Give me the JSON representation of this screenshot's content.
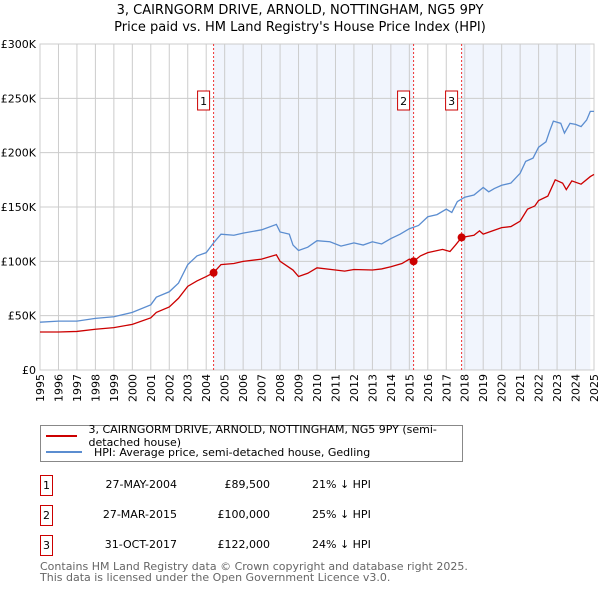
{
  "chart_data": {
    "type": "line",
    "title": "3, CAIRNGORM DRIVE, ARNOLD, NOTTINGHAM, NG5 9PY",
    "subtitle": "Price paid vs. HM Land Registry's House Price Index (HPI)",
    "xlim": [
      1995,
      2025
    ],
    "ylim": [
      0,
      300000
    ],
    "x_ticks": [
      "1995",
      "1996",
      "1997",
      "1998",
      "1999",
      "2000",
      "2001",
      "2002",
      "2003",
      "2004",
      "2005",
      "2006",
      "2007",
      "2008",
      "2009",
      "2010",
      "2011",
      "2012",
      "2013",
      "2014",
      "2015",
      "2016",
      "2017",
      "2018",
      "2019",
      "2020",
      "2021",
      "2022",
      "2023",
      "2024",
      "2025"
    ],
    "y_ticks": [
      {
        "v": 0,
        "label": "£0"
      },
      {
        "v": 50000,
        "label": "£50K"
      },
      {
        "v": 100000,
        "label": "£100K"
      },
      {
        "v": 150000,
        "label": "£150K"
      },
      {
        "v": 200000,
        "label": "£200K"
      },
      {
        "v": 250000,
        "label": "£250K"
      },
      {
        "v": 300000,
        "label": "£300K"
      }
    ],
    "grid": true,
    "series": [
      {
        "name": "3, CAIRNGORM DRIVE, ARNOLD, NOTTINGHAM, NG5 9PY (semi-detached house)",
        "color": "#cc0000",
        "x": [
          1995,
          1996,
          1997,
          1998,
          1999,
          2000,
          2001,
          2001.3,
          2002,
          2002.5,
          2003,
          2003.5,
          2004,
          2004.4,
          2004.8,
          2005.5,
          2006,
          2007,
          2007.8,
          2008,
          2008.7,
          2009,
          2009.5,
          2010,
          2011,
          2011.5,
          2012,
          2013,
          2013.5,
          2014,
          2014.6,
          2015,
          2015.23,
          2015.6,
          2016,
          2016.8,
          2017.2,
          2017.5,
          2017.83,
          2018.5,
          2018.8,
          2019,
          2019.5,
          2020,
          2020.5,
          2021,
          2021.4,
          2021.8,
          2022,
          2022.5,
          2022.9,
          2023.3,
          2023.5,
          2023.8,
          2024.3,
          2024.8,
          2025
        ],
        "y": [
          35000,
          35000,
          35500,
          37500,
          39000,
          42000,
          48000,
          53000,
          58000,
          66000,
          77000,
          82000,
          86000,
          89500,
          97000,
          98000,
          100000,
          102000,
          106000,
          100000,
          92000,
          86000,
          89000,
          94000,
          92000,
          91000,
          92500,
          92000,
          93000,
          95000,
          98000,
          102000,
          100000,
          105000,
          108000,
          111000,
          109000,
          115000,
          122000,
          124000,
          128000,
          125000,
          128000,
          131000,
          132000,
          137000,
          148000,
          151000,
          156000,
          160000,
          175000,
          172000,
          166000,
          174000,
          171000,
          178000,
          180000
        ]
      },
      {
        "name": "HPI: Average price, semi-detached house, Gedling",
        "color": "#5b8dd0",
        "x": [
          1995,
          1996,
          1997,
          1998,
          1999,
          2000,
          2001,
          2001.3,
          2002,
          2002.5,
          2003,
          2003.5,
          2004,
          2004.4,
          2004.8,
          2005.5,
          2006,
          2007,
          2007.8,
          2008,
          2008.5,
          2008.7,
          2009,
          2009.5,
          2010,
          2010.7,
          2011.3,
          2012,
          2012.5,
          2013,
          2013.5,
          2014,
          2014.5,
          2015,
          2015.5,
          2016,
          2016.5,
          2017,
          2017.3,
          2017.6,
          2018,
          2018.5,
          2019,
          2019.3,
          2019.6,
          2020,
          2020.5,
          2021,
          2021.3,
          2021.7,
          2022,
          2022.4,
          2022.6,
          2022.8,
          2023.2,
          2023.4,
          2023.7,
          2024,
          2024.3,
          2024.6,
          2024.8,
          2025
        ],
        "y": [
          44000,
          45000,
          45000,
          47500,
          49000,
          53000,
          60000,
          67000,
          72000,
          80000,
          97000,
          105000,
          108000,
          117000,
          125000,
          124000,
          126000,
          129000,
          134000,
          127000,
          125000,
          115000,
          110000,
          113000,
          119000,
          118000,
          114000,
          117000,
          115000,
          118000,
          116000,
          121000,
          125000,
          130000,
          133000,
          141000,
          143000,
          148000,
          145000,
          155000,
          159000,
          161000,
          168000,
          164000,
          167000,
          170000,
          172000,
          181000,
          192000,
          195000,
          205000,
          210000,
          220000,
          229000,
          227000,
          218000,
          227000,
          226000,
          224000,
          230000,
          238000,
          238000
        ]
      }
    ],
    "sales": [
      {
        "id": "1",
        "x": 2004.4,
        "y": 89500,
        "date": "27-MAY-2004",
        "price": "£89,500",
        "hpi": "21% ↓ HPI"
      },
      {
        "id": "2",
        "x": 2015.23,
        "y": 100000,
        "date": "27-MAR-2015",
        "price": "£100,000",
        "hpi": "25% ↓ HPI"
      },
      {
        "id": "3",
        "x": 2017.83,
        "y": 122000,
        "date": "31-OCT-2017",
        "price": "£122,000",
        "hpi": "24% ↓ HPI"
      }
    ],
    "legend": "below"
  },
  "footer": {
    "line1": "Contains HM Land Registry data © Crown copyright and database right 2025.",
    "line2": "This data is licensed under the Open Government Licence v3.0."
  }
}
